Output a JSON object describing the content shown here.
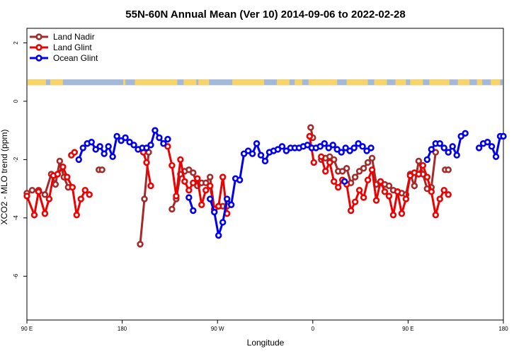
{
  "chart_data": {
    "type": "line",
    "title": "55N-60N Annual Mean (Ver 10)   2014-09-06 to 2022-02-28",
    "xlabel": "Longitude",
    "ylabel": "XCO2 - MLO trend (ppm)",
    "x_ticks": [
      {
        "lon": 90,
        "label": "90 E"
      },
      {
        "lon": 180,
        "label": "180"
      },
      {
        "lon": 270,
        "label": "90 W"
      },
      {
        "lon": 360,
        "label": "0"
      },
      {
        "lon": 450,
        "label": "90 E"
      },
      {
        "lon": 540,
        "label": "180"
      }
    ],
    "y_ticks": [
      2,
      0,
      -2,
      -4,
      -6
    ],
    "xlim": [
      90,
      540
    ],
    "ylim": [
      -7.5,
      2.5
    ],
    "legend_position": "top-left",
    "map_strip": {
      "y_top": 0.75,
      "y_bottom": 0.55,
      "ocean_color": "#a4b8d8",
      "land_color": "#f7d46a"
    },
    "series": [
      {
        "name": "Land Nadir",
        "color": "#a52a2a",
        "segments": [
          [
            [
              90,
              -3.15
            ],
            [
              95,
              -3.05
            ],
            [
              101,
              -3.05
            ],
            [
              107,
              -3.2
            ],
            [
              113,
              -2.5
            ],
            [
              117,
              -2.85
            ],
            [
              121,
              -2.05
            ],
            [
              125,
              -2.6
            ],
            [
              129,
              -2.95
            ]
          ],
          [
            [
              158,
              -2.35
            ],
            [
              161,
              -2.35
            ]
          ],
          [
            [
              197,
              -4.9
            ],
            [
              201,
              -3.35
            ],
            [
              205,
              -1.75
            ]
          ],
          [
            [
              227,
              -3.7
            ],
            [
              231,
              -3.35
            ],
            [
              235,
              -2.5
            ],
            [
              239,
              -2.4
            ],
            [
              243,
              -2.35
            ],
            [
              247,
              -2.45
            ],
            [
              251,
              -2.9
            ],
            [
              255,
              -2.8
            ],
            [
              259,
              -2.8
            ],
            [
              263,
              -2.6
            ],
            [
              267,
              -3.7
            ],
            [
              271,
              -3.6
            ],
            [
              275,
              -3.6
            ],
            [
              279,
              -3.6
            ]
          ],
          [
            [
              358,
              -0.9
            ],
            [
              360,
              -1.25
            ]
          ],
          [
            [
              368,
              -2.0
            ],
            [
              372,
              -1.95
            ],
            [
              376,
              -1.9
            ],
            [
              380,
              -2.0
            ],
            [
              384,
              -2.4
            ],
            [
              388,
              -2.4
            ],
            [
              392,
              -2.3
            ],
            [
              396,
              -2.8
            ],
            [
              400,
              -2.6
            ],
            [
              404,
              -2.4
            ],
            [
              408,
              -2.3
            ],
            [
              412,
              -2.1
            ],
            [
              416,
              -1.95
            ],
            [
              420,
              -2.85
            ],
            [
              424,
              -2.8
            ],
            [
              428,
              -2.85
            ],
            [
              432,
              -2.9
            ],
            [
              436,
              -3.05
            ],
            [
              440,
              -3.1
            ],
            [
              444,
              -3.15
            ],
            [
              448,
              -3.2
            ],
            [
              452,
              -2.5
            ],
            [
              456,
              -2.9
            ],
            [
              460,
              -2.05
            ],
            [
              464,
              -2.5
            ],
            [
              468,
              -3.0
            ],
            [
              472,
              -2.95
            ],
            [
              476,
              -1.75
            ]
          ],
          [
            [
              485,
              -2.35
            ],
            [
              488,
              -2.35
            ]
          ]
        ]
      },
      {
        "name": "Land Glint",
        "color": "#ee0000",
        "segments": [
          [
            [
              90,
              -3.25
            ],
            [
              97,
              -3.9
            ],
            [
              101,
              -3.1
            ],
            [
              107,
              -3.85
            ],
            [
              111,
              -3.35
            ],
            [
              115,
              -2.55
            ],
            [
              119,
              -2.5
            ],
            [
              124,
              -2.25
            ],
            [
              128,
              -2.6
            ],
            [
              133,
              -2.95
            ],
            [
              137,
              -3.9
            ],
            [
              141,
              -3.35
            ],
            [
              145,
              -3.05
            ],
            [
              149,
              -3.2
            ]
          ],
          [
            [
              132,
              -1.85
            ],
            [
              135,
              -1.75
            ]
          ],
          [
            [
              200,
              -1.75
            ],
            [
              203,
              -2.1
            ],
            [
              207,
              -2.9
            ]
          ],
          [
            [
              223,
              -1.55
            ],
            [
              227,
              -2.2
            ],
            [
              231,
              -3.25
            ],
            [
              235,
              -2.0
            ],
            [
              239,
              -2.75
            ],
            [
              243,
              -3.05
            ],
            [
              247,
              -2.8
            ],
            [
              251,
              -2.65
            ],
            [
              255,
              -3.55
            ],
            [
              259,
              -3.05
            ],
            [
              263,
              -2.9
            ],
            [
              267,
              -3.7
            ],
            [
              271,
              -3.6
            ],
            [
              275,
              -2.6
            ],
            [
              279,
              -3.85
            ]
          ],
          [
            [
              357,
              -1.2
            ],
            [
              361,
              -2.1
            ]
          ],
          [
            [
              368,
              -1.9
            ],
            [
              372,
              -2.4
            ],
            [
              376,
              -2.1
            ],
            [
              380,
              -2.75
            ],
            [
              384,
              -2.95
            ],
            [
              388,
              -2.7
            ],
            [
              392,
              -2.85
            ],
            [
              396,
              -3.75
            ],
            [
              400,
              -3.45
            ],
            [
              404,
              -3.05
            ],
            [
              408,
              -3.3
            ],
            [
              412,
              -2.7
            ],
            [
              416,
              -2.35
            ],
            [
              420,
              -3.4
            ],
            [
              424,
              -2.75
            ],
            [
              428,
              -3.1
            ],
            [
              432,
              -3.25
            ],
            [
              436,
              -3.9
            ],
            [
              440,
              -3.1
            ],
            [
              444,
              -3.85
            ],
            [
              448,
              -3.35
            ],
            [
              452,
              -2.55
            ],
            [
              456,
              -2.45
            ],
            [
              460,
              -2.5
            ],
            [
              464,
              -2.2
            ],
            [
              468,
              -2.6
            ],
            [
              472,
              -3.1
            ],
            [
              476,
              -3.9
            ],
            [
              480,
              -3.35
            ],
            [
              484,
              -3.05
            ],
            [
              488,
              -3.2
            ]
          ]
        ]
      },
      {
        "name": "Ocean Glint",
        "color": "#0000ee",
        "segments": [
          [
            [
              139,
              -2.0
            ],
            [
              143,
              -1.6
            ],
            [
              147,
              -1.45
            ],
            [
              151,
              -1.4
            ],
            [
              155,
              -1.65
            ],
            [
              159,
              -1.55
            ],
            [
              163,
              -1.8
            ],
            [
              167,
              -1.55
            ],
            [
              171,
              -1.9
            ],
            [
              175,
              -1.2
            ],
            [
              179,
              -1.35
            ],
            [
              183,
              -1.25
            ],
            [
              187,
              -1.4
            ],
            [
              191,
              -1.5
            ],
            [
              195,
              -1.65
            ],
            [
              199,
              -1.6
            ],
            [
              203,
              -1.6
            ],
            [
              207,
              -1.5
            ],
            [
              211,
              -1.0
            ],
            [
              215,
              -1.25
            ],
            [
              219,
              -1.45
            ],
            [
              223,
              -1.3
            ]
          ],
          [
            [
              243,
              -3.3
            ],
            [
              247,
              -3.75
            ]
          ],
          [
            [
              263,
              -3.35
            ],
            [
              267,
              -3.8
            ],
            [
              271,
              -4.6
            ],
            [
              275,
              -4.15
            ],
            [
              279,
              -3.35
            ],
            [
              283,
              -3.55
            ],
            [
              287,
              -2.65
            ],
            [
              291,
              -2.7
            ],
            [
              295,
              -1.8
            ],
            [
              299,
              -1.7
            ],
            [
              303,
              -1.8
            ],
            [
              307,
              -1.45
            ],
            [
              311,
              -1.85
            ],
            [
              315,
              -2.05
            ],
            [
              319,
              -1.75
            ],
            [
              323,
              -1.7
            ],
            [
              327,
              -1.65
            ],
            [
              331,
              -1.55
            ],
            [
              335,
              -1.7
            ],
            [
              339,
              -1.6
            ],
            [
              343,
              -1.6
            ],
            [
              347,
              -1.6
            ],
            [
              351,
              -1.55
            ],
            [
              355,
              -1.5
            ],
            [
              359,
              -1.6
            ],
            [
              363,
              -1.6
            ],
            [
              367,
              -1.55
            ],
            [
              371,
              -1.45
            ],
            [
              375,
              -1.6
            ],
            [
              379,
              -1.5
            ],
            [
              383,
              -1.65
            ],
            [
              387,
              -1.75
            ],
            [
              391,
              -1.6
            ],
            [
              395,
              -1.7
            ],
            [
              399,
              -1.6
            ],
            [
              403,
              -1.45
            ],
            [
              407,
              -1.55
            ],
            [
              411,
              -1.7
            ],
            [
              415,
              -1.6
            ]
          ],
          [
            [
              390,
              -2.75
            ]
          ],
          [
            [
              468,
              -2.0
            ],
            [
              472,
              -1.65
            ],
            [
              476,
              -1.45
            ],
            [
              480,
              -1.45
            ],
            [
              484,
              -1.6
            ],
            [
              488,
              -1.75
            ],
            [
              492,
              -1.55
            ],
            [
              496,
              -1.85
            ],
            [
              500,
              -1.2
            ],
            [
              504,
              -1.1
            ]
          ],
          [
            [
              517,
              -1.6
            ],
            [
              521,
              -1.45
            ],
            [
              525,
              -1.4
            ],
            [
              529,
              -1.55
            ],
            [
              533,
              -1.9
            ],
            [
              537,
              -1.2
            ],
            [
              540,
              -1.2
            ]
          ]
        ]
      }
    ]
  }
}
